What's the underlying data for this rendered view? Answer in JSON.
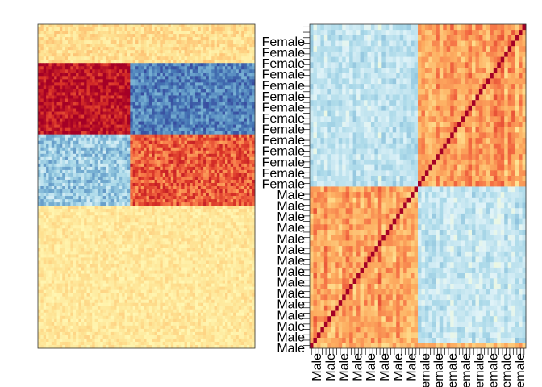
{
  "chart_data": [
    {
      "type": "heatmap",
      "title": "",
      "xlabel": "",
      "ylabel": "",
      "color_scale": [
        "#A50026",
        "#D73027",
        "#F46D43",
        "#FDAE61",
        "#FEE090",
        "#FFFFBF",
        "#E0F3F8",
        "#ABD9E9",
        "#74ADD1",
        "#4575B4",
        "#313695"
      ],
      "rows": 100,
      "cols": 80,
      "row_blocks": [
        {
          "rows": [
            0,
            12
          ],
          "value": 0.2,
          "noise": 0.12
        },
        {
          "rows": [
            12,
            34
          ],
          "cols_split": 34,
          "left_value": 0.9,
          "right_value": -0.75,
          "noise": 0.18
        },
        {
          "rows": [
            34,
            56
          ],
          "cols_split": 34,
          "left_value": -0.45,
          "right_value": 0.65,
          "noise": 0.22
        },
        {
          "rows": [
            56,
            100
          ],
          "value": 0.15,
          "noise": 0.1
        }
      ]
    },
    {
      "type": "heatmap",
      "title": "",
      "xlabel": "",
      "ylabel": "",
      "color_scale": [
        "#A50026",
        "#D73027",
        "#F46D43",
        "#FDAE61",
        "#FEE090",
        "#FFFFBF",
        "#E0F3F8",
        "#ABD9E9",
        "#74ADD1",
        "#4575B4",
        "#313695"
      ],
      "n": 60,
      "groups": [
        {
          "label": "Female",
          "count": 30
        },
        {
          "label": "Male",
          "count": 30
        }
      ],
      "within_group_value": 0.45,
      "between_group_value": -0.3,
      "diagonal_value": 1.0,
      "y_tick_labels": [
        "Female",
        "Female",
        "Female",
        "Female",
        "Female",
        "Female",
        "Female",
        "Female",
        "Female",
        "Female",
        "Female",
        "Female",
        "Female",
        "Female",
        "Male",
        "Male",
        "Male",
        "Male",
        "Male",
        "Male",
        "Male",
        "Male",
        "Male",
        "Male",
        "Male",
        "Male",
        "Male",
        "Male",
        "Male"
      ],
      "x_tick_labels": [
        "Male",
        "Male",
        "Male",
        "Male",
        "Male",
        "Male",
        "Male",
        "Male",
        "Female",
        "Female",
        "Female",
        "Female",
        "Female",
        "Female",
        "Female",
        "Female"
      ]
    }
  ]
}
